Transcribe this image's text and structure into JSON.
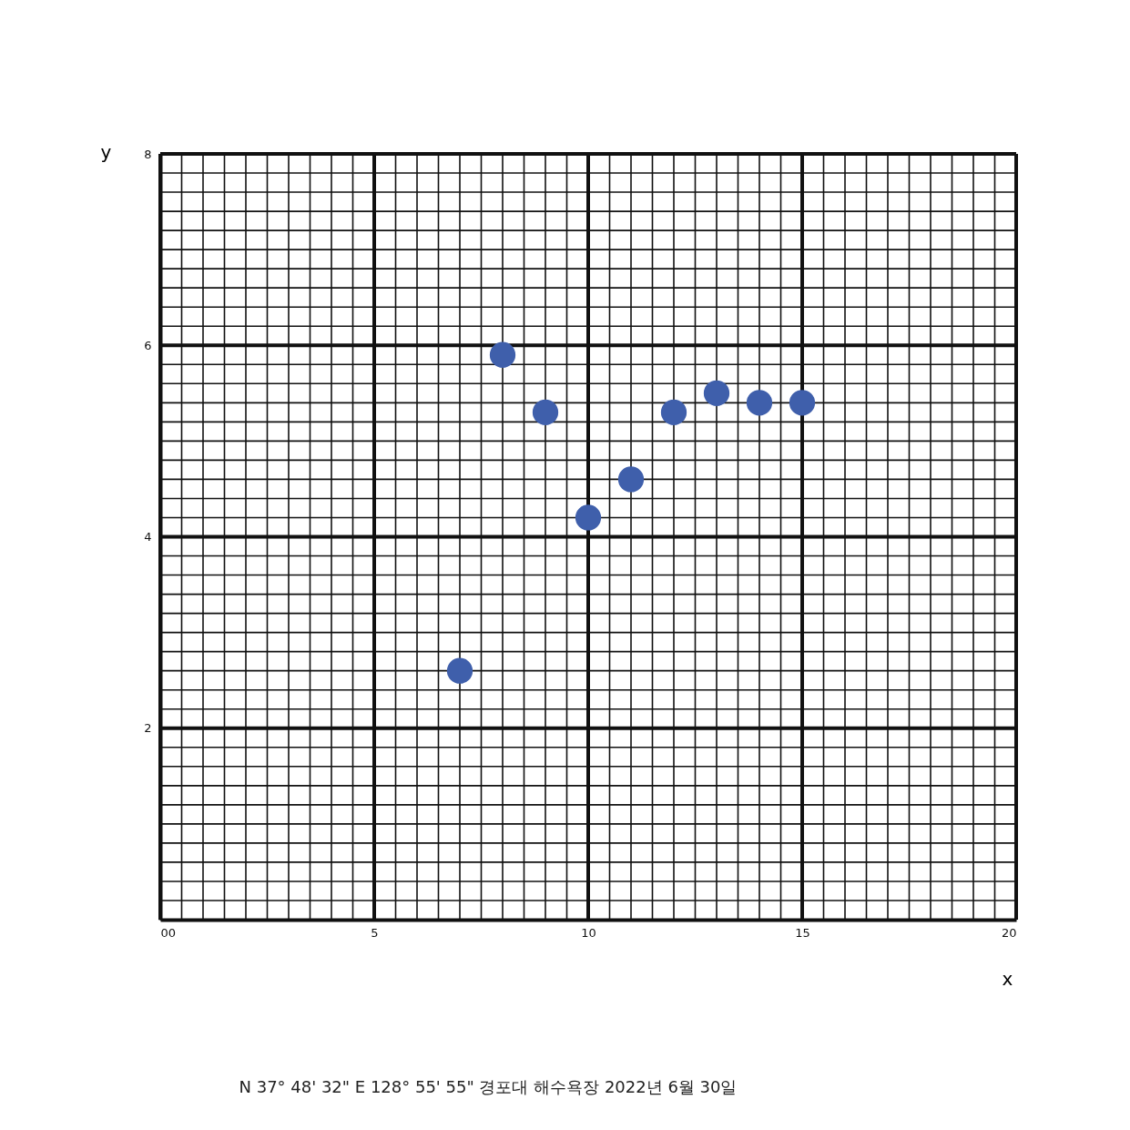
{
  "chart_data": {
    "type": "scatter",
    "xlabel": "x",
    "ylabel": "y",
    "annotations": [
      "N 37° 48' 32\" E 128° 55' 55\" 경포대 해수욕장 2022년 6월 30일"
    ],
    "x": [
      7,
      8,
      9,
      10,
      11,
      12,
      13,
      14,
      15
    ],
    "series": [
      {
        "color": "#3f5fab",
        "values": [
          2.6,
          5.9,
          5.3,
          4.2,
          4.6,
          5.3,
          5.5,
          5.4,
          5.4
        ]
      }
    ],
    "marker": "circle",
    "grid": true,
    "xlim": [
      0,
      20
    ],
    "ylim": [
      0,
      8
    ],
    "xticks": [
      {
        "value": 0,
        "label": "00"
      },
      {
        "value": 0.5,
        "label": null
      },
      {
        "value": 1,
        "label": null
      },
      {
        "value": 1.5,
        "label": null
      },
      {
        "value": 2,
        "label": null
      },
      {
        "value": 2.5,
        "label": null
      },
      {
        "value": 3,
        "label": null
      },
      {
        "value": 3.5,
        "label": null
      },
      {
        "value": 4,
        "label": null
      },
      {
        "value": 4.5,
        "label": null
      },
      5,
      {
        "value": 5.5,
        "label": null
      },
      {
        "value": 6,
        "label": null
      },
      {
        "value": 6.5,
        "label": null
      },
      {
        "value": 7,
        "label": null
      },
      {
        "value": 7.5,
        "label": null
      },
      {
        "value": 8,
        "label": null
      },
      {
        "value": 8.5,
        "label": null
      },
      {
        "value": 9,
        "label": null
      },
      {
        "value": 9.5,
        "label": null
      },
      10,
      {
        "value": 10.5,
        "label": null
      },
      {
        "value": 11,
        "label": null
      },
      {
        "value": 11.5,
        "label": null
      },
      {
        "value": 12,
        "label": null
      },
      {
        "value": 12.5,
        "label": null
      },
      {
        "value": 13,
        "label": null
      },
      {
        "value": 13.5,
        "label": null
      },
      {
        "value": 14,
        "label": null
      },
      {
        "value": 14.5,
        "label": null
      },
      15,
      {
        "value": 15.5,
        "label": null
      },
      {
        "value": 16,
        "label": null
      },
      {
        "value": 16.5,
        "label": null
      },
      {
        "value": 17,
        "label": null
      },
      {
        "value": 17.5,
        "label": null
      },
      {
        "value": 18,
        "label": null
      },
      {
        "value": 18.5,
        "label": null
      },
      {
        "value": 19,
        "label": null
      },
      {
        "value": 19.5,
        "label": null
      },
      20
    ],
    "yticks": [
      {
        "value": 0,
        "label": null
      },
      {
        "value": 0.2,
        "label": null
      },
      {
        "value": 0.4,
        "label": null
      },
      {
        "value": 0.6,
        "label": null
      },
      {
        "value": 0.8,
        "label": null
      },
      {
        "value": 1,
        "label": null
      },
      {
        "value": 1.2,
        "label": null
      },
      {
        "value": 1.4,
        "label": null
      },
      {
        "value": 1.6,
        "label": null
      },
      {
        "value": 1.8,
        "label": null
      },
      2,
      {
        "value": 2.2,
        "label": null
      },
      {
        "value": 2.4,
        "label": null
      },
      {
        "value": 2.6,
        "label": null
      },
      {
        "value": 2.8,
        "label": null
      },
      {
        "value": 3,
        "label": null
      },
      {
        "value": 3.2,
        "label": null
      },
      {
        "value": 3.4,
        "label": null
      },
      {
        "value": 3.6,
        "label": null
      },
      {
        "value": 3.8,
        "label": null
      },
      4,
      {
        "value": 4.2,
        "label": null
      },
      {
        "value": 4.4,
        "label": null
      },
      {
        "value": 4.6,
        "label": null
      },
      {
        "value": 4.8,
        "label": null
      },
      {
        "value": 5,
        "label": null
      },
      {
        "value": 5.2,
        "label": null
      },
      {
        "value": 5.4,
        "label": null
      },
      {
        "value": 5.6,
        "label": null
      },
      {
        "value": 5.8,
        "label": null
      },
      6,
      {
        "value": 6.2,
        "label": null
      },
      {
        "value": 6.4,
        "label": null
      },
      {
        "value": 6.6,
        "label": null
      },
      {
        "value": 6.8,
        "label": null
      },
      {
        "value": 7,
        "label": null
      },
      {
        "value": 7.2,
        "label": null
      },
      {
        "value": 7.4,
        "label": null
      },
      {
        "value": 7.6,
        "label": null
      },
      {
        "value": 7.8,
        "label": null
      },
      8
    ]
  }
}
